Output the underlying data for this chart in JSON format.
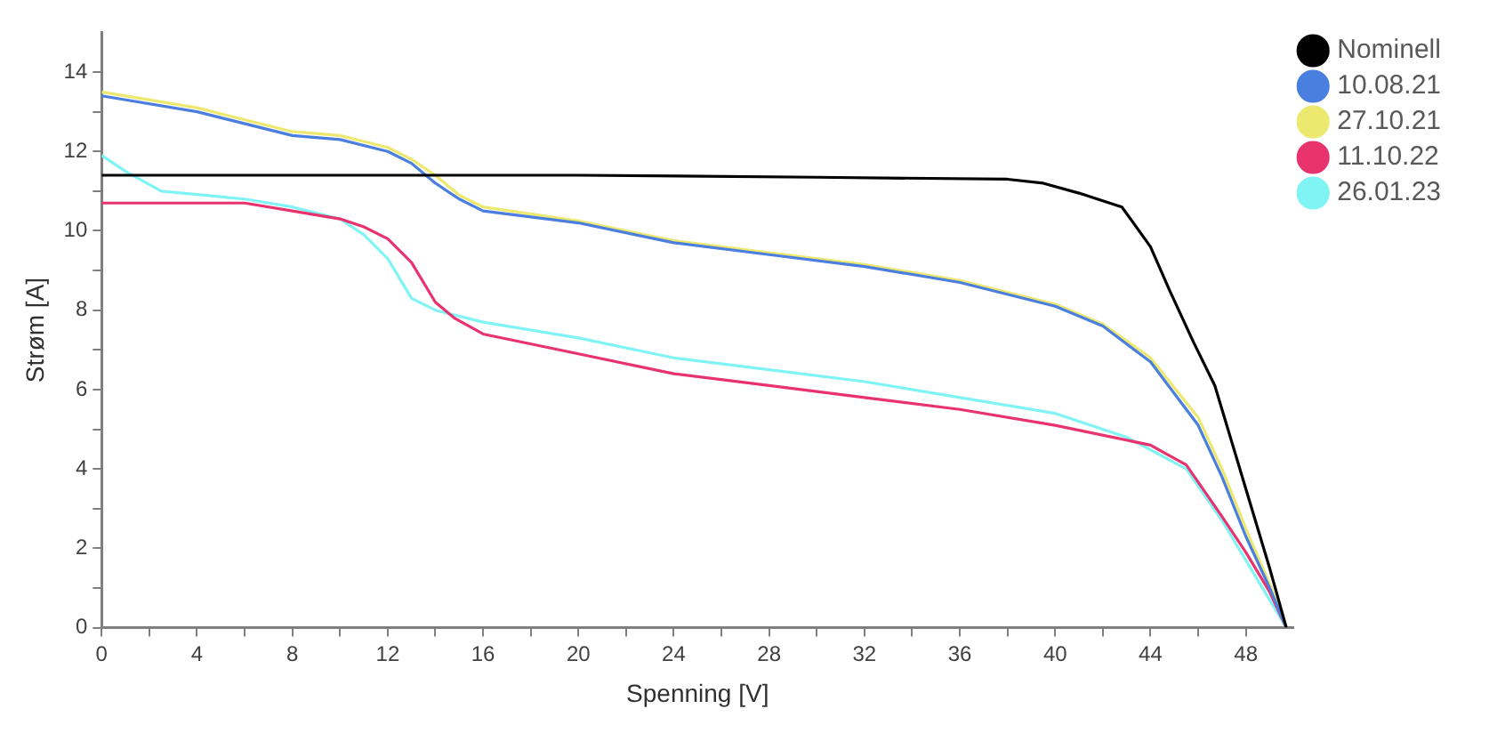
{
  "chart_data": {
    "type": "line",
    "xlabel": "Spenning [V]",
    "ylabel": "Strøm [A]",
    "xlim": [
      0,
      50
    ],
    "ylim": [
      0,
      15
    ],
    "xticks": [
      0,
      {
        "value": 2,
        "label": null
      },
      4,
      {
        "value": 6,
        "label": null
      },
      8,
      {
        "value": 10,
        "label": null
      },
      12,
      {
        "value": 14,
        "label": null
      },
      16,
      {
        "value": 18,
        "label": null
      },
      20,
      {
        "value": 22,
        "label": null
      },
      24,
      {
        "value": 26,
        "label": null
      },
      28,
      {
        "value": 30,
        "label": null
      },
      32,
      {
        "value": 34,
        "label": null
      },
      36,
      {
        "value": 38,
        "label": null
      },
      40,
      {
        "value": 42,
        "label": null
      },
      44,
      {
        "value": 46,
        "label": null
      },
      48
    ],
    "yticks": [
      0,
      {
        "value": 1,
        "label": null
      },
      2,
      {
        "value": 3,
        "label": null
      },
      4,
      {
        "value": 5,
        "label": null
      },
      6,
      {
        "value": 7,
        "label": null
      },
      8,
      {
        "value": 9,
        "label": null
      },
      10,
      {
        "value": 11,
        "label": null
      },
      12,
      {
        "value": 13,
        "label": null
      },
      14
    ],
    "grid": false,
    "legend": "top right",
    "series": [
      {
        "name": "Nominell",
        "color": "#000000",
        "x": [
          0,
          10,
          20,
          30,
          38,
          39.5,
          41,
          42.8,
          44,
          44.8,
          45.8,
          46.7,
          48,
          49,
          49.7
        ],
        "values": [
          11.4,
          11.4,
          11.4,
          11.35,
          11.3,
          11.2,
          10.95,
          10.6,
          9.6,
          8.5,
          7.2,
          6.1,
          3.5,
          1.5,
          0
        ]
      },
      {
        "name": "10.08.21",
        "color": "#4a7fe0",
        "x": [
          0,
          4,
          8,
          10,
          12,
          13,
          14,
          15,
          16,
          20,
          24,
          28,
          32,
          36,
          40,
          42,
          44,
          46,
          47,
          48,
          49,
          49.7
        ],
        "values": [
          13.4,
          13.0,
          12.4,
          12.3,
          12.0,
          11.7,
          11.2,
          10.8,
          10.5,
          10.2,
          9.7,
          9.4,
          9.1,
          8.7,
          8.1,
          7.6,
          6.7,
          5.1,
          3.8,
          2.3,
          1.0,
          0
        ]
      },
      {
        "name": "27.10.21",
        "color": "#ece870",
        "x": [
          0,
          4,
          8,
          10,
          12,
          13,
          14,
          15,
          16,
          20,
          24,
          28,
          32,
          36,
          40,
          42,
          44,
          46,
          47,
          48,
          49,
          49.7
        ],
        "values": [
          13.5,
          13.1,
          12.5,
          12.4,
          12.1,
          11.8,
          11.4,
          10.9,
          10.6,
          10.25,
          9.75,
          9.45,
          9.15,
          8.75,
          8.15,
          7.65,
          6.8,
          5.3,
          4.0,
          2.5,
          1.1,
          0
        ]
      },
      {
        "name": "11.10.22",
        "color": "#e8336e",
        "x": [
          0,
          6,
          8,
          10,
          11,
          12,
          13,
          14,
          14.8,
          16,
          20,
          24,
          28,
          32,
          36,
          40,
          44,
          45.5,
          47,
          48,
          49,
          49.7
        ],
        "values": [
          10.7,
          10.7,
          10.5,
          10.3,
          10.1,
          9.8,
          9.2,
          8.2,
          7.8,
          7.4,
          6.9,
          6.4,
          6.1,
          5.8,
          5.5,
          5.1,
          4.6,
          4.1,
          2.8,
          1.9,
          0.9,
          0
        ]
      },
      {
        "name": "26.01.23",
        "color": "#80f4f4",
        "x": [
          0,
          1,
          2.5,
          6,
          8,
          10,
          11,
          12,
          13,
          14,
          16,
          20,
          24,
          28,
          32,
          36,
          40,
          43,
          45.5,
          47,
          48,
          49,
          49.7
        ],
        "values": [
          11.9,
          11.5,
          11.0,
          10.8,
          10.6,
          10.3,
          9.9,
          9.3,
          8.3,
          8.0,
          7.7,
          7.3,
          6.8,
          6.5,
          6.2,
          5.8,
          5.4,
          4.8,
          4.0,
          2.7,
          1.7,
          0.7,
          0
        ]
      }
    ]
  }
}
